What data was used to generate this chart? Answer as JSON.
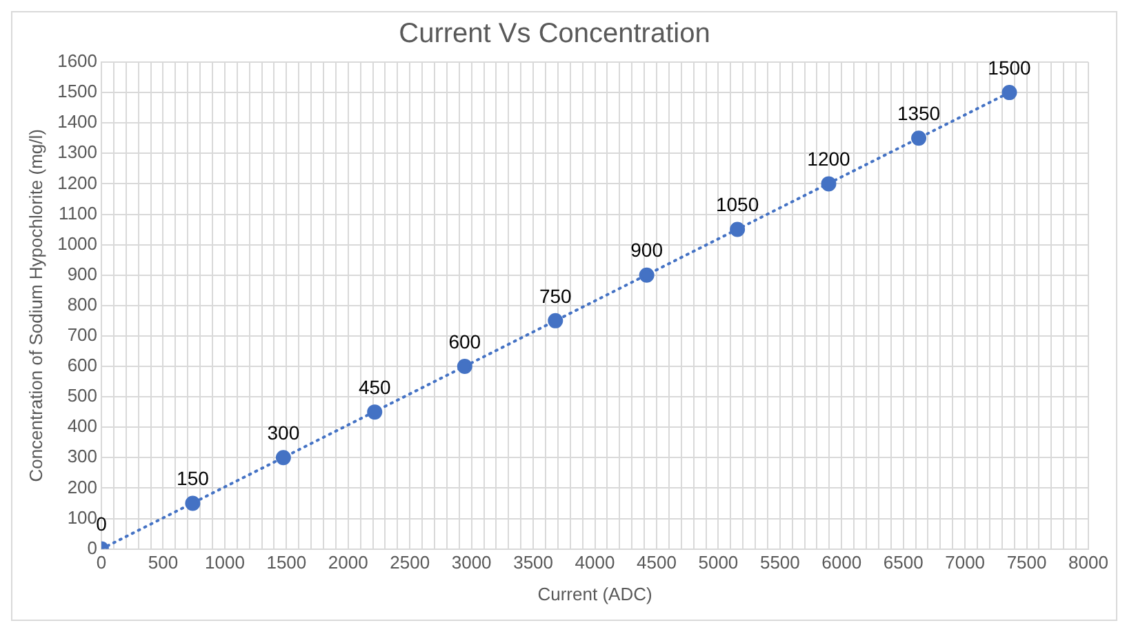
{
  "chart_data": {
    "type": "scatter",
    "title": "Current Vs Concentration",
    "xlabel": "Current (ADC)",
    "ylabel": "Concentration of Sodium Hypochlorite (mg/l)",
    "x": [
      0,
      740,
      1475,
      2215,
      2945,
      3680,
      4420,
      5155,
      5895,
      6625,
      7360
    ],
    "series": [
      {
        "color": "#4472c4",
        "values": [
          0,
          150,
          300,
          450,
          600,
          750,
          900,
          1050,
          1200,
          1350,
          1500
        ],
        "value_labels": [
          "0",
          "150",
          "300",
          "450",
          "600",
          "750",
          "900",
          "1050",
          "1200",
          "1350",
          "1500"
        ],
        "marker": "circle"
      },
      {
        "type": "line",
        "color": "#4472c4",
        "x": [
          0,
          7360
        ],
        "values": [
          0,
          1500
        ],
        "line_style": "dotted",
        "marker": "none"
      }
    ],
    "xlim": [
      0,
      8000
    ],
    "ylim": [
      0,
      1600
    ],
    "xticks": [
      0,
      {
        "value": 100,
        "label": null
      },
      {
        "value": 200,
        "label": null
      },
      {
        "value": 300,
        "label": null
      },
      {
        "value": 400,
        "label": null
      },
      500,
      {
        "value": 600,
        "label": null
      },
      {
        "value": 700,
        "label": null
      },
      {
        "value": 800,
        "label": null
      },
      {
        "value": 900,
        "label": null
      },
      1000,
      {
        "value": 1100,
        "label": null
      },
      {
        "value": 1200,
        "label": null
      },
      {
        "value": 1300,
        "label": null
      },
      {
        "value": 1400,
        "label": null
      },
      1500,
      {
        "value": 1600,
        "label": null
      },
      {
        "value": 1700,
        "label": null
      },
      {
        "value": 1800,
        "label": null
      },
      {
        "value": 1900,
        "label": null
      },
      2000,
      {
        "value": 2100,
        "label": null
      },
      {
        "value": 2200,
        "label": null
      },
      {
        "value": 2300,
        "label": null
      },
      {
        "value": 2400,
        "label": null
      },
      2500,
      {
        "value": 2600,
        "label": null
      },
      {
        "value": 2700,
        "label": null
      },
      {
        "value": 2800,
        "label": null
      },
      {
        "value": 2900,
        "label": null
      },
      3000,
      {
        "value": 3100,
        "label": null
      },
      {
        "value": 3200,
        "label": null
      },
      {
        "value": 3300,
        "label": null
      },
      {
        "value": 3400,
        "label": null
      },
      3500,
      {
        "value": 3600,
        "label": null
      },
      {
        "value": 3700,
        "label": null
      },
      {
        "value": 3800,
        "label": null
      },
      {
        "value": 3900,
        "label": null
      },
      4000,
      {
        "value": 4100,
        "label": null
      },
      {
        "value": 4200,
        "label": null
      },
      {
        "value": 4300,
        "label": null
      },
      {
        "value": 4400,
        "label": null
      },
      4500,
      {
        "value": 4600,
        "label": null
      },
      {
        "value": 4700,
        "label": null
      },
      {
        "value": 4800,
        "label": null
      },
      {
        "value": 4900,
        "label": null
      },
      5000,
      {
        "value": 5100,
        "label": null
      },
      {
        "value": 5200,
        "label": null
      },
      {
        "value": 5300,
        "label": null
      },
      {
        "value": 5400,
        "label": null
      },
      5500,
      {
        "value": 5600,
        "label": null
      },
      {
        "value": 5700,
        "label": null
      },
      {
        "value": 5800,
        "label": null
      },
      {
        "value": 5900,
        "label": null
      },
      6000,
      {
        "value": 6100,
        "label": null
      },
      {
        "value": 6200,
        "label": null
      },
      {
        "value": 6300,
        "label": null
      },
      {
        "value": 6400,
        "label": null
      },
      6500,
      {
        "value": 6600,
        "label": null
      },
      {
        "value": 6700,
        "label": null
      },
      {
        "value": 6800,
        "label": null
      },
      {
        "value": 6900,
        "label": null
      },
      7000,
      {
        "value": 7100,
        "label": null
      },
      {
        "value": 7200,
        "label": null
      },
      {
        "value": 7300,
        "label": null
      },
      {
        "value": 7400,
        "label": null
      },
      7500,
      {
        "value": 7600,
        "label": null
      },
      {
        "value": 7700,
        "label": null
      },
      {
        "value": 7800,
        "label": null
      },
      {
        "value": 7900,
        "label": null
      },
      8000
    ],
    "yticks": [
      0,
      100,
      200,
      300,
      400,
      500,
      600,
      700,
      800,
      900,
      1000,
      1100,
      1200,
      1300,
      1400,
      1500,
      1600
    ],
    "grid": true,
    "legend": false
  }
}
